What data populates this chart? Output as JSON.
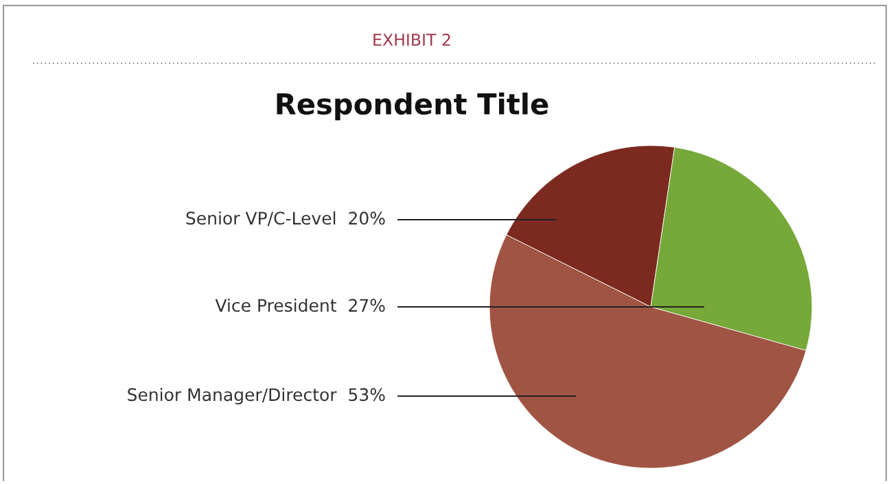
{
  "chart_data": {
    "type": "pie",
    "title": "Respondent Title",
    "annotations": [
      "EXHIBIT 2"
    ],
    "categories": [
      "Senior VP/C-Level",
      "Vice President",
      "Senior Manager/Director"
    ],
    "values": [
      20,
      27,
      53
    ],
    "value_labels": [
      "20%",
      "27%",
      "53%"
    ],
    "colors": [
      "#7c2a20",
      "#76a83a",
      "#a05443"
    ],
    "legend": false
  }
}
